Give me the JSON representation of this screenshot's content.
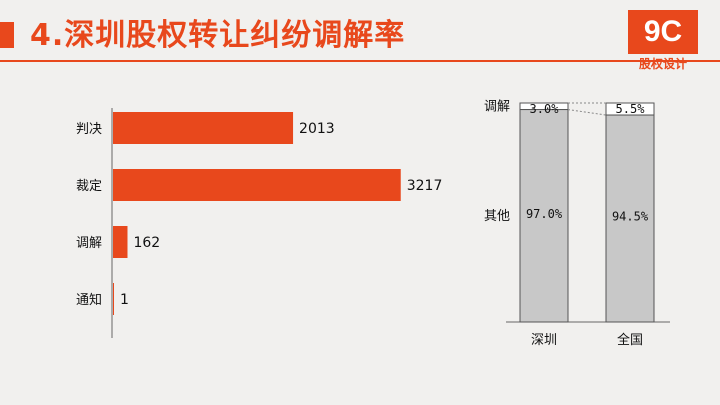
{
  "slide": {
    "title": "4.深圳股权转让纠纷调解率",
    "logo": {
      "mark": "9C",
      "subtitle": "股权设计"
    }
  },
  "colors": {
    "accent": "#e8481c",
    "stack_main": "#c8c8c8",
    "stack_top": "#ffffff"
  },
  "chart_data": [
    {
      "type": "bar",
      "orientation": "horizontal",
      "title": "",
      "xlabel": "",
      "ylabel": "",
      "categories": [
        "判决",
        "裁定",
        "调解",
        "通知"
      ],
      "values": [
        2013,
        3217,
        162,
        1
      ],
      "data_labels": [
        "2013",
        "3217",
        "162",
        "1"
      ],
      "xlim": [
        0,
        3600
      ],
      "grid": false
    },
    {
      "type": "bar",
      "stacked": true,
      "percent": true,
      "title": "",
      "xlabel": "",
      "ylabel": "",
      "categories": [
        "深圳",
        "全国"
      ],
      "series": [
        {
          "name": "其他",
          "values": [
            97.0,
            94.5
          ],
          "labels": [
            "97.0%",
            "94.5%"
          ]
        },
        {
          "name": "调解",
          "values": [
            3.0,
            5.5
          ],
          "labels": [
            "3.0%",
            "5.5%"
          ]
        }
      ],
      "ylim": [
        0,
        100
      ],
      "grid": false
    }
  ]
}
